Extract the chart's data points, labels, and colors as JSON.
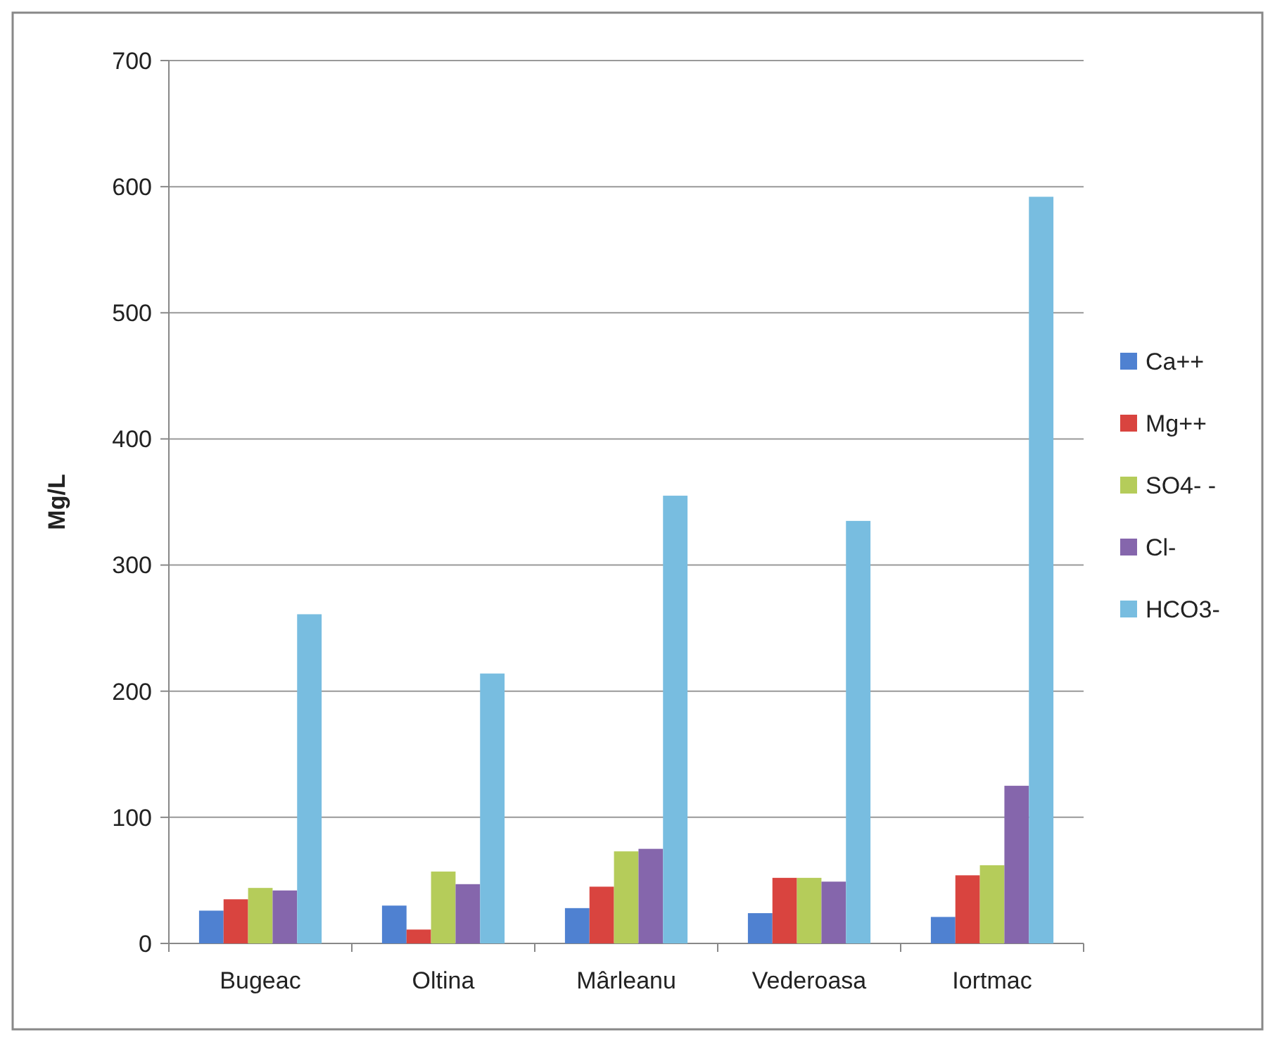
{
  "chart_data": {
    "type": "bar",
    "ylabel": "Mg/L",
    "categories": [
      "Bugeac",
      "Oltina",
      "Mârleanu",
      "Vederoasa",
      "Iortmac"
    ],
    "series": [
      {
        "name": "Ca++",
        "color": "#4f81d1",
        "values": [
          26,
          30,
          28,
          24,
          21
        ]
      },
      {
        "name": "Mg++",
        "color": "#d9443f",
        "values": [
          35,
          11,
          45,
          52,
          54
        ]
      },
      {
        "name": "SO4- -",
        "color": "#b5cc5a",
        "values": [
          44,
          57,
          73,
          52,
          62
        ]
      },
      {
        "name": "Cl-",
        "color": "#8566ac",
        "values": [
          42,
          47,
          75,
          49,
          125
        ]
      },
      {
        "name": "HCO3-",
        "color": "#78bde0",
        "values": [
          261,
          214,
          355,
          335,
          592
        ]
      }
    ],
    "ylim": [
      0,
      700
    ],
    "yticks": [
      0,
      100,
      200,
      300,
      400,
      500,
      600,
      700
    ],
    "grid": "y",
    "legend": "right"
  }
}
